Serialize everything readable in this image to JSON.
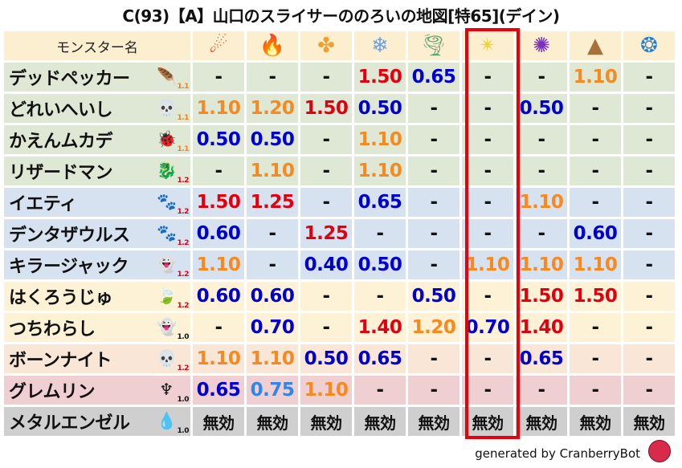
{
  "title": "C(93)【A】山口のスライサーののろいの地図[特65](デイン)",
  "header": {
    "name_label": "モンスター名",
    "elements": [
      {
        "icon": "fire-ball-icon",
        "glyph": "☄",
        "color": "#e0461c"
      },
      {
        "icon": "flame-icon",
        "glyph": "🔥",
        "color": "#e8501a"
      },
      {
        "icon": "explosion-icon",
        "glyph": "✤",
        "color": "#f0a030"
      },
      {
        "icon": "ice-icon",
        "glyph": "❄",
        "color": "#6aa0e8"
      },
      {
        "icon": "wind-icon",
        "glyph": "🌪",
        "color": "#5aa070"
      },
      {
        "icon": "lightning-icon",
        "glyph": "✴",
        "color": "#e8d840"
      },
      {
        "icon": "darkness-icon",
        "glyph": "✺",
        "color": "#7a30c0"
      },
      {
        "icon": "earth-icon",
        "glyph": "▲",
        "color": "#a8703a"
      },
      {
        "icon": "water-icon",
        "glyph": "❂",
        "color": "#2a80d0"
      }
    ]
  },
  "colors": {
    "blue": "#0000d0",
    "lightblue": "#2f86e8",
    "orange": "#f6891f",
    "red": "#e00010",
    "black": "#111111",
    "highlight": "#e8000b"
  },
  "rows": [
    {
      "name": "デッドペッカー",
      "icon": "wing-icon",
      "glyph": "🪶",
      "level": "1.1",
      "lvcolor": "#f08020",
      "cls": "r-green",
      "values": [
        "-",
        "-",
        "-",
        "1.50",
        "0.65",
        "-",
        "-",
        "1.10",
        "-"
      ]
    },
    {
      "name": "どれいへいし",
      "icon": "skull-icon",
      "glyph": "💀",
      "level": "1.1",
      "lvcolor": "#f08020",
      "cls": "r-green",
      "values": [
        "1.10",
        "1.20",
        "1.50",
        "0.50",
        "-",
        "-",
        "0.50",
        "-",
        "-"
      ]
    },
    {
      "name": "かえんムカデ",
      "icon": "insect-icon",
      "glyph": "🐞",
      "level": "1.1",
      "lvcolor": "#f08020",
      "cls": "r-green",
      "values": [
        "0.50",
        "0.50",
        "-",
        "1.10",
        "-",
        "-",
        "-",
        "-",
        "-"
      ]
    },
    {
      "name": "リザードマン",
      "icon": "dragon-icon",
      "glyph": "🐉",
      "level": "1.2",
      "lvcolor": "#e00010",
      "cls": "r-green",
      "values": [
        "-",
        "1.10",
        "-",
        "1.10",
        "-",
        "-",
        "-",
        "-",
        "-"
      ]
    },
    {
      "name": "イエティ",
      "icon": "paw-icon",
      "glyph": "🐾",
      "level": "1.2",
      "lvcolor": "#e00010",
      "cls": "r-blue",
      "values": [
        "1.50",
        "1.25",
        "-",
        "0.65",
        "-",
        "-",
        "1.10",
        "-",
        "-"
      ]
    },
    {
      "name": "デンタザウルス",
      "icon": "paw-icon",
      "glyph": "🐾",
      "level": "1.2",
      "lvcolor": "#e00010",
      "cls": "r-blue",
      "values": [
        "0.60",
        "-",
        "1.25",
        "-",
        "-",
        "-",
        "-",
        "0.60",
        "-"
      ]
    },
    {
      "name": "キラージャック",
      "icon": "slime-ghost-icon",
      "glyph": "👻",
      "level": "1.2",
      "lvcolor": "#e00010",
      "cls": "r-blue",
      "values": [
        "1.10",
        "-",
        "0.40",
        "0.50",
        "-",
        "1.10",
        "1.10",
        "1.10",
        "-"
      ]
    },
    {
      "name": "はくろうじゅ",
      "icon": "leaf-icon",
      "glyph": "🍃",
      "level": "1.2",
      "lvcolor": "#e00010",
      "cls": "r-yellow",
      "values": [
        "0.60",
        "0.60",
        "-",
        "-",
        "0.50",
        "-",
        "1.50",
        "1.50",
        "-"
      ]
    },
    {
      "name": "つちわらし",
      "icon": "slime-ghost-icon",
      "glyph": "👻",
      "level": "1.0",
      "lvcolor": "#111111",
      "cls": "r-yellow",
      "values": [
        "-",
        "0.70",
        "-",
        "1.40",
        "1.20",
        "0.70",
        "1.40",
        "-",
        "-"
      ]
    },
    {
      "name": "ボーンナイト",
      "icon": "skull-icon",
      "glyph": "💀",
      "level": "1.2",
      "lvcolor": "#e00010",
      "cls": "r-peach",
      "values": [
        "1.10",
        "1.10",
        "0.50",
        "0.65",
        "-",
        "-",
        "0.65",
        "-",
        "-"
      ]
    },
    {
      "name": "グレムリン",
      "icon": "trident-icon",
      "glyph": "♆",
      "level": "1.0",
      "lvcolor": "#111111",
      "cls": "r-pink",
      "values": [
        "0.65",
        "0.75",
        "1.10",
        "-",
        "-",
        "-",
        "-",
        "-",
        "-"
      ]
    },
    {
      "name": "メタルエンゼル",
      "icon": "slime-icon",
      "glyph": "💧",
      "level": "1.0",
      "lvcolor": "#111111",
      "cls": "r-gray",
      "values": [
        "無効",
        "無効",
        "無効",
        "無効",
        "無効",
        "無効",
        "無効",
        "無効",
        "無効"
      ]
    }
  ],
  "footer": {
    "text": "generated by CranberryBot",
    "logo_icon": "cranberry-bot-icon"
  }
}
